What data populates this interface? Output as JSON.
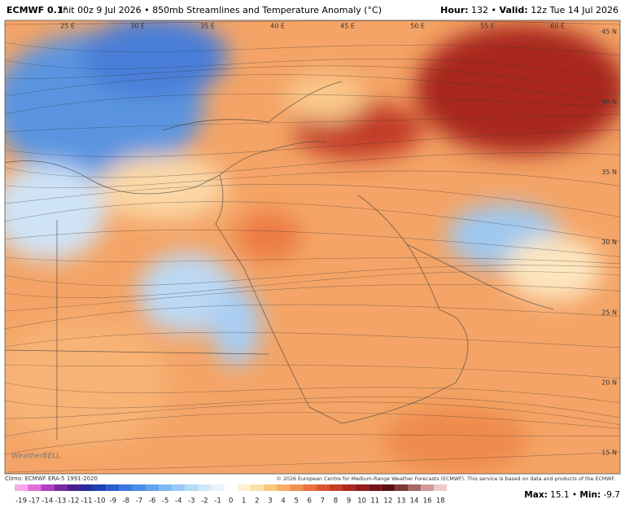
{
  "header": {
    "model": "ECMWF 0.1°",
    "description": "Init 00z 9 Jul 2026 • 850mb Streamlines and Temperature Anomaly (°C)",
    "hour_label": "Hour:",
    "hour": "132",
    "separator": "•",
    "valid_label": "Valid:",
    "valid": "12z Tue 14 Jul 2026"
  },
  "map": {
    "longitude_labels": [
      "25 E",
      "30 E",
      "35 E",
      "40 E",
      "45 E",
      "50 E",
      "55 E",
      "60 E"
    ],
    "latitude_labels": [
      "45 N",
      "40 N",
      "35 N",
      "30 N",
      "25 N",
      "20 N",
      "15 N"
    ],
    "watermark": "WeatherBELL"
  },
  "footer": {
    "climo": "Climo: ECMWF ERA-5 1991-2020",
    "copyright": "© 2026 European Centre for Medium-Range Weather Forecasts (ECMWF). This service is based on data and products of the ECMWF."
  },
  "colorbar": {
    "items": [
      {
        "label": -19,
        "color": "#f7a8e8"
      },
      {
        "label": -17,
        "color": "#e070d8"
      },
      {
        "label": -14,
        "color": "#b040c0"
      },
      {
        "label": -13,
        "color": "#7a2aa0"
      },
      {
        "label": -12,
        "color": "#4a2090"
      },
      {
        "label": -11,
        "color": "#2a2a9a"
      },
      {
        "label": -10,
        "color": "#2040b8"
      },
      {
        "label": -9,
        "color": "#2a5ed0"
      },
      {
        "label": -8,
        "color": "#3a78e0"
      },
      {
        "label": -7,
        "color": "#4a8ee8"
      },
      {
        "label": -6,
        "color": "#62a4ee"
      },
      {
        "label": -5,
        "color": "#7cb8f2"
      },
      {
        "label": -4,
        "color": "#98caf5"
      },
      {
        "label": -3,
        "color": "#b4dbf8"
      },
      {
        "label": -2,
        "color": "#cfe8fa"
      },
      {
        "label": -1,
        "color": "#e8f4fc"
      },
      {
        "label": 0,
        "color": "#ffffff"
      },
      {
        "label": 1,
        "color": "#fdf1d0"
      },
      {
        "label": 2,
        "color": "#fbe0a6"
      },
      {
        "label": 3,
        "color": "#f9c982"
      },
      {
        "label": 4,
        "color": "#f6ad66"
      },
      {
        "label": 5,
        "color": "#f2904e"
      },
      {
        "label": 6,
        "color": "#ea723c"
      },
      {
        "label": 7,
        "color": "#dc5530"
      },
      {
        "label": 8,
        "color": "#c83c26"
      },
      {
        "label": 9,
        "color": "#ae2820"
      },
      {
        "label": 10,
        "color": "#901c1c"
      },
      {
        "label": 11,
        "color": "#741418"
      },
      {
        "label": 12,
        "color": "#5a1014"
      },
      {
        "label": 13,
        "color": "#7a3a3a"
      },
      {
        "label": 14,
        "color": "#a86868"
      },
      {
        "label": 16,
        "color": "#d09a9a"
      },
      {
        "label": 18,
        "color": "#eccaca"
      }
    ]
  },
  "stats": {
    "max_label": "Max:",
    "max": 15.1,
    "separator": "•",
    "min_label": "Min:",
    "min": -9.7
  }
}
